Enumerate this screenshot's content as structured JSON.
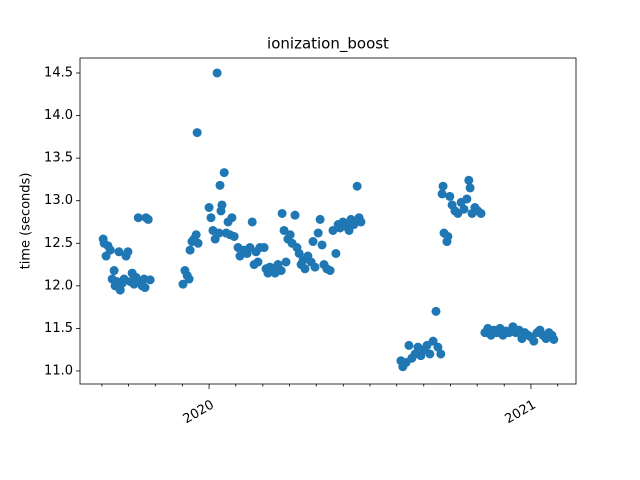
{
  "chart_data": {
    "type": "scatter",
    "title": "ionization_boost",
    "y_label": "time (seconds)",
    "color": "#1f77b4",
    "x": [
      2019.671,
      2019.674,
      2019.68,
      2019.686,
      2019.693,
      2019.699,
      2019.705,
      2019.708,
      2019.714,
      2019.72,
      2019.724,
      2019.73,
      2019.736,
      2019.742,
      2019.748,
      2019.755,
      2019.761,
      2019.767,
      2019.773,
      2019.78,
      2019.786,
      2019.792,
      2019.798,
      2019.804,
      2019.811,
      2019.801,
      2019.817,
      2019.919,
      2019.925,
      2019.932,
      2019.938,
      2019.941,
      2019.947,
      2019.953,
      2019.96,
      2019.963,
      2019.966,
      2020.0,
      2020.006,
      2020.012,
      2020.019,
      2020.025,
      2020.031,
      2020.034,
      2020.037,
      2020.04,
      2020.047,
      2020.053,
      2020.059,
      2020.065,
      2020.071,
      2020.078,
      2020.09,
      2020.096,
      2020.102,
      2020.109,
      2020.118,
      2020.127,
      2020.134,
      2020.14,
      2020.146,
      2020.152,
      2020.158,
      2020.171,
      2020.177,
      2020.183,
      2020.189,
      2020.196,
      2020.205,
      2020.214,
      2020.224,
      2020.227,
      2020.233,
      2020.239,
      2020.245,
      2020.252,
      2020.258,
      2020.267,
      2020.273,
      2020.28,
      2020.286,
      2020.292,
      2020.298,
      2020.307,
      2020.317,
      2020.323,
      2020.329,
      2020.339,
      2020.345,
      2020.351,
      2020.357,
      2020.366,
      2020.376,
      2020.385,
      2020.394,
      2020.401,
      2020.407,
      2020.416,
      2020.425,
      2020.435,
      2020.441,
      2020.45,
      2020.46,
      2020.466,
      2020.472,
      2020.596,
      2020.602,
      2020.612,
      2020.621,
      2020.63,
      2020.64,
      2020.649,
      2020.658,
      2020.668,
      2020.677,
      2020.686,
      2020.696,
      2020.705,
      2020.711,
      2020.72,
      2020.724,
      2020.727,
      2020.73,
      2020.739,
      2020.742,
      2020.748,
      2020.755,
      2020.764,
      2020.773,
      2020.783,
      2020.792,
      2020.801,
      2020.807,
      2020.811,
      2020.817,
      2020.826,
      2020.835,
      2020.845,
      2020.857,
      2020.866,
      2020.876,
      2020.885,
      2020.894,
      2020.904,
      2020.913,
      2020.922,
      2020.932,
      2020.944,
      2020.953,
      2020.963,
      2020.972,
      2020.981,
      2020.991,
      2021.0,
      2021.009,
      2021.019,
      2021.028,
      2021.037,
      2021.047,
      2021.056,
      2021.065,
      2021.071
    ],
    "values": [
      12.55,
      12.5,
      12.35,
      12.47,
      12.42,
      12.08,
      12.18,
      12.0,
      12.05,
      12.4,
      11.95,
      12.03,
      12.08,
      12.35,
      12.4,
      12.05,
      12.15,
      12.02,
      12.1,
      12.8,
      12.05,
      12.0,
      12.08,
      12.8,
      12.78,
      11.98,
      12.07,
      12.02,
      12.18,
      12.12,
      12.08,
      12.42,
      12.52,
      12.55,
      12.6,
      13.8,
      12.5,
      12.92,
      12.8,
      12.65,
      12.55,
      14.5,
      12.62,
      13.18,
      12.88,
      12.95,
      13.33,
      12.62,
      12.75,
      12.6,
      12.8,
      12.58,
      12.45,
      12.35,
      12.4,
      12.42,
      12.38,
      12.45,
      12.75,
      12.25,
      12.4,
      12.28,
      12.45,
      12.45,
      12.2,
      12.15,
      12.22,
      12.18,
      12.15,
      12.25,
      12.18,
      12.85,
      12.65,
      12.28,
      12.55,
      12.6,
      12.5,
      12.83,
      12.45,
      12.38,
      12.25,
      12.3,
      12.2,
      12.35,
      12.28,
      12.52,
      12.22,
      12.62,
      12.78,
      12.48,
      12.25,
      12.2,
      12.18,
      12.65,
      12.38,
      12.72,
      12.68,
      12.75,
      12.7,
      12.65,
      12.78,
      12.72,
      13.17,
      12.8,
      12.75,
      11.12,
      11.05,
      11.1,
      11.3,
      11.15,
      11.2,
      11.28,
      11.18,
      11.25,
      11.3,
      11.2,
      11.35,
      11.7,
      11.28,
      11.2,
      13.08,
      13.17,
      12.62,
      12.52,
      12.58,
      13.05,
      12.95,
      12.88,
      12.85,
      12.98,
      12.9,
      13.02,
      13.24,
      13.15,
      12.85,
      12.92,
      12.88,
      12.85,
      11.45,
      11.5,
      11.42,
      11.48,
      11.45,
      11.5,
      11.42,
      11.47,
      11.45,
      11.52,
      11.45,
      11.48,
      11.38,
      11.45,
      11.42,
      11.4,
      11.35,
      11.45,
      11.48,
      11.42,
      11.38,
      11.45,
      11.42,
      11.37
    ],
    "xlim": [
      2019.599,
      2021.14
    ],
    "xticks": [
      2020,
      2021
    ],
    "xminorticks": [
      2019.667,
      2019.75,
      2019.833,
      2019.917,
      2020.083,
      2020.167,
      2020.25,
      2020.333,
      2020.417,
      2020.5,
      2020.583,
      2020.667,
      2020.75,
      2020.833,
      2020.917,
      2021.083
    ],
    "ylim": [
      10.847,
      14.676
    ],
    "yticks": [
      {
        "value": 11,
        "label": "11.0"
      },
      11.5,
      {
        "value": 12,
        "label": "12.0"
      },
      12.5,
      {
        "value": 13,
        "label": "13.0"
      },
      13.5,
      {
        "value": 14,
        "label": "14.0"
      },
      14.5
    ]
  }
}
